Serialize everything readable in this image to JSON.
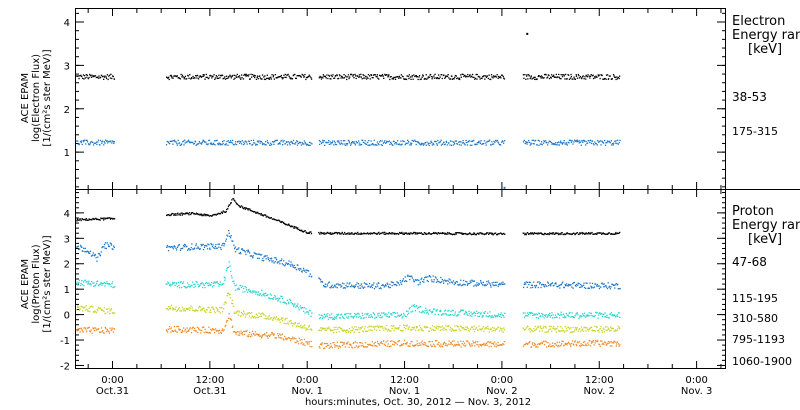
{
  "x_axis": {
    "title": "hours:minutes, Oct. 30, 2012 — Nov.  3, 2012",
    "ticks": [
      {
        "time": "0:00",
        "date": "Oct.31",
        "hours": 24
      },
      {
        "time": "12:00",
        "date": "Oct.31",
        "hours": 36
      },
      {
        "time": "0:00",
        "date": "Nov. 1",
        "hours": 48
      },
      {
        "time": "12:00",
        "date": "Nov. 1",
        "hours": 60
      },
      {
        "time": "0:00",
        "date": "Nov. 2",
        "hours": 72
      },
      {
        "time": "12:00",
        "date": "Nov. 2",
        "hours": 84
      },
      {
        "time": "0:00",
        "date": "Nov. 3",
        "hours": 96
      }
    ],
    "range_hours": [
      19.5,
      99.5
    ],
    "hours_reference": "0:00 Oct. 30, 2012"
  },
  "chart_data": [
    {
      "type": "scatter",
      "panel": "electron",
      "ylabel_lines": [
        "ACE EPAM",
        "log(Electron Flux)",
        "[1/(cm²s ster MeV)]"
      ],
      "ylim": [
        0.15,
        4.3
      ],
      "yticks": [
        1,
        2,
        3,
        4
      ],
      "legend_title_lines": [
        "Electron",
        "Energy ranges",
        "[keV]"
      ],
      "series": [
        {
          "name": "38-53",
          "color": "#000000",
          "level": 2.75,
          "jitter": 0.06
        },
        {
          "name": "175-315",
          "color": "#1f78c8",
          "level": 1.23,
          "jitter": 0.06
        }
      ],
      "data_gaps_hours": [
        [
          24.2,
          30.5
        ],
        [
          48.5,
          49.3
        ],
        [
          72.3,
          74.5
        ],
        [
          86.5,
          99.5
        ]
      ],
      "annotations": [
        {
          "x": 75.0,
          "y": 3.75,
          "note": "outlier"
        },
        {
          "x": 72.2,
          "y": 0.2,
          "note": "outlier"
        }
      ]
    },
    {
      "type": "scatter",
      "panel": "proton",
      "ylabel_lines": [
        "ACE EPAM",
        "log(Proton Flux)",
        "[1/(cm²s ster MeV)]"
      ],
      "ylim": [
        -2.1,
        4.9
      ],
      "yticks": [
        -2,
        -1,
        0,
        1,
        2,
        3,
        4
      ],
      "legend_title_lines": [
        "Proton",
        "Energy ranges",
        "[keV]"
      ],
      "series": [
        {
          "name": "47-68",
          "color": "#000000",
          "shape": [
            [
              19.5,
              3.75
            ],
            [
              24.0,
              3.8
            ],
            [
              30.5,
              3.95
            ],
            [
              34.0,
              4.0
            ],
            [
              36.0,
              3.9
            ],
            [
              38.0,
              4.1
            ],
            [
              38.8,
              4.6
            ],
            [
              39.5,
              4.3
            ],
            [
              42.0,
              4.0
            ],
            [
              46.0,
              3.5
            ],
            [
              48.0,
              3.25
            ],
            [
              50.0,
              3.22
            ],
            [
              60.0,
              3.22
            ],
            [
              72.0,
              3.2
            ],
            [
              86.5,
              3.22
            ]
          ]
        },
        {
          "name": "115-195",
          "color": "#1f78c8",
          "shape": [
            [
              19.5,
              2.7
            ],
            [
              21.0,
              2.55
            ],
            [
              22.0,
              2.2
            ],
            [
              23.0,
              2.75
            ],
            [
              24.0,
              2.7
            ],
            [
              30.5,
              2.65
            ],
            [
              35.0,
              2.7
            ],
            [
              37.5,
              2.7
            ],
            [
              38.3,
              3.3
            ],
            [
              39.0,
              2.6
            ],
            [
              42.0,
              2.3
            ],
            [
              46.0,
              2.0
            ],
            [
              48.0,
              1.7
            ],
            [
              50.0,
              1.2
            ],
            [
              56.0,
              1.15
            ],
            [
              59.0,
              1.2
            ],
            [
              60.5,
              1.5
            ],
            [
              61.5,
              1.3
            ],
            [
              63.0,
              1.45
            ],
            [
              66.0,
              1.3
            ],
            [
              72.0,
              1.2
            ],
            [
              76.0,
              1.2
            ],
            [
              86.5,
              1.15
            ]
          ]
        },
        {
          "name": "310-580",
          "color": "#2ad4d0",
          "shape": [
            [
              19.5,
              1.3
            ],
            [
              24.0,
              1.2
            ],
            [
              30.5,
              1.2
            ],
            [
              37.5,
              1.2
            ],
            [
              38.3,
              2.0
            ],
            [
              39.0,
              1.1
            ],
            [
              42.0,
              0.9
            ],
            [
              46.0,
              0.5
            ],
            [
              48.0,
              0.1
            ],
            [
              50.0,
              -0.05
            ],
            [
              60.0,
              0.0
            ],
            [
              61.0,
              0.3
            ],
            [
              63.0,
              0.15
            ],
            [
              72.0,
              0.0
            ],
            [
              86.5,
              0.0
            ]
          ]
        },
        {
          "name": "795-1193",
          "color": "#c8d42a",
          "shape": [
            [
              19.5,
              0.3
            ],
            [
              24.0,
              0.15
            ],
            [
              30.5,
              0.3
            ],
            [
              37.5,
              0.2
            ],
            [
              38.3,
              0.9
            ],
            [
              39.0,
              0.1
            ],
            [
              44.0,
              -0.1
            ],
            [
              48.0,
              -0.5
            ],
            [
              50.0,
              -0.6
            ],
            [
              60.0,
              -0.5
            ],
            [
              72.0,
              -0.55
            ],
            [
              86.5,
              -0.55
            ]
          ]
        },
        {
          "name": "1060-1900",
          "color": "#f08c28",
          "shape": [
            [
              19.5,
              -0.6
            ],
            [
              24.0,
              -0.6
            ],
            [
              30.5,
              -0.55
            ],
            [
              37.5,
              -0.6
            ],
            [
              38.3,
              0.0
            ],
            [
              39.0,
              -0.7
            ],
            [
              44.0,
              -0.8
            ],
            [
              48.0,
              -1.1
            ],
            [
              50.0,
              -1.2
            ],
            [
              60.0,
              -1.1
            ],
            [
              72.0,
              -1.15
            ],
            [
              86.5,
              -1.1
            ]
          ]
        }
      ],
      "data_gaps_hours": [
        [
          24.2,
          30.5
        ],
        [
          48.5,
          49.3
        ],
        [
          72.3,
          74.5
        ],
        [
          86.5,
          99.5
        ]
      ]
    }
  ]
}
